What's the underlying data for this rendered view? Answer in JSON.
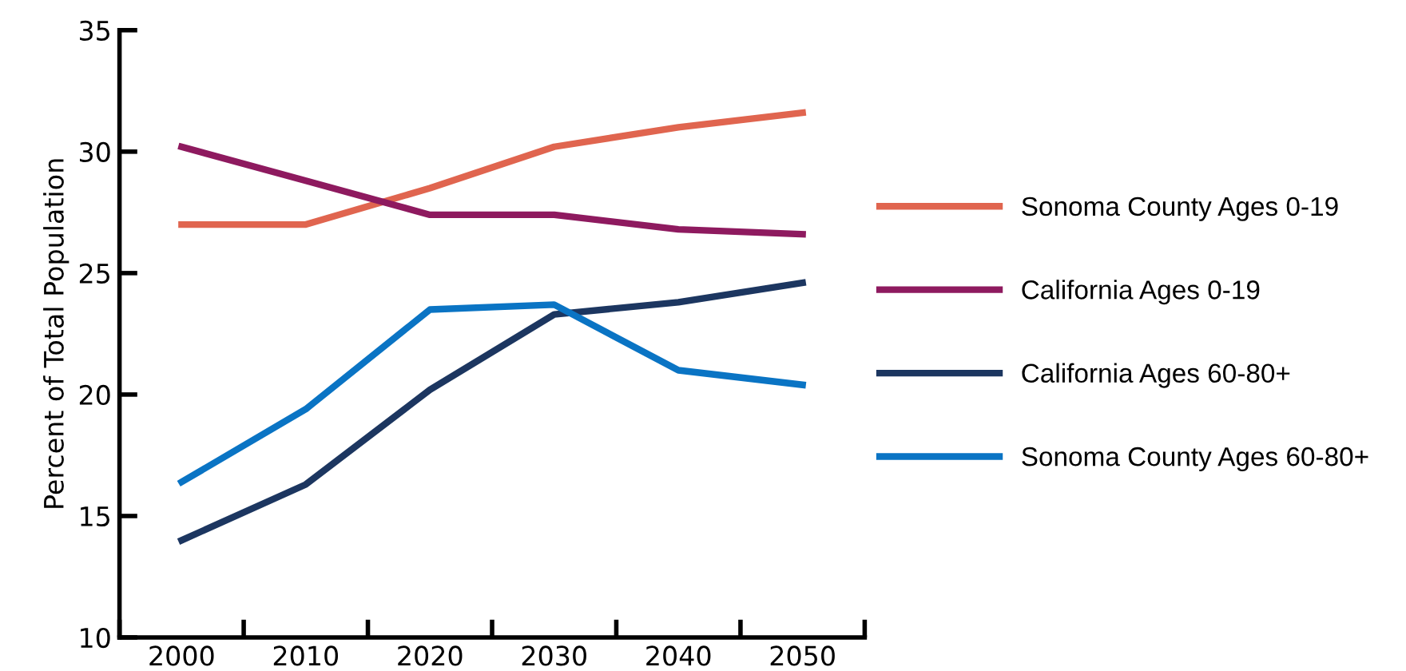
{
  "chart_data": {
    "type": "line",
    "ylabel": "Percent of Total Population",
    "categories": [
      "2000",
      "2010",
      "2020",
      "2030",
      "2040",
      "2050"
    ],
    "series": [
      {
        "name": "Sonoma County Ages 0-19",
        "color": "#e0654f",
        "values": [
          27,
          27,
          28.5,
          30.2,
          31,
          31.6
        ]
      },
      {
        "name": "California Ages 0-19",
        "color": "#8e1a5f",
        "values": [
          30.2,
          28.8,
          27.4,
          27.4,
          26.8,
          26.6
        ]
      },
      {
        "name": "California Ages 60-80+",
        "color": "#1c3660",
        "values": [
          14,
          16.3,
          20.2,
          23.3,
          23.8,
          24.6
        ]
      },
      {
        "name": "Sonoma County Ages 60-80+",
        "color": "#0a74c4",
        "values": [
          16.4,
          19.4,
          23.5,
          23.7,
          21,
          20.4
        ]
      }
    ],
    "ylim": [
      10,
      35
    ],
    "yticks": [
      10,
      15,
      20,
      25,
      30,
      35
    ],
    "grid": false,
    "legend": "right",
    "marker": "none",
    "line_style": "solid"
  }
}
